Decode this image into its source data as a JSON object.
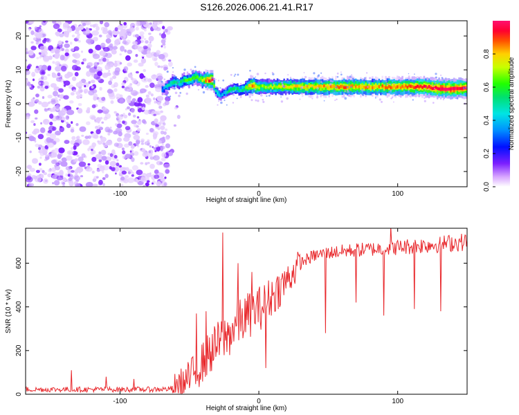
{
  "title": "S126.2026.006.21.41.R17",
  "colors": {
    "snr_line": "#e8262a",
    "speckle": "#7c1fff",
    "background": "#ffffff"
  },
  "chart_data": [
    {
      "type": "heatmap",
      "name": "spectrogram",
      "xlabel": "Height of straight line (km)",
      "ylabel": "Frequency (Hz)",
      "xlim": [
        -168,
        150
      ],
      "ylim": [
        -24.5,
        24.5
      ],
      "xticks": [
        -100,
        0,
        100
      ],
      "yticks": [
        -20,
        -10,
        0,
        10,
        20
      ],
      "noise_region": {
        "x": [
          -168,
          -65
        ],
        "y": [
          -24.5,
          24.5
        ]
      },
      "frequency_track": {
        "x": [
          -70,
          -66,
          -62,
          -58,
          -54,
          -50,
          -46,
          -42,
          -38,
          -34,
          -32,
          -30,
          -28,
          -26,
          -22,
          -18,
          -14,
          -10,
          -6,
          -2,
          2,
          10,
          20,
          40,
          60,
          80,
          100,
          120,
          130,
          140,
          150
        ],
        "y": [
          4,
          5.5,
          6.5,
          6,
          7,
          7,
          8,
          7,
          7,
          7,
          4,
          3,
          2.5,
          3,
          4,
          4.5,
          4,
          4.5,
          5.5,
          5,
          5,
          5,
          5,
          5,
          5,
          5,
          5,
          5,
          4.5,
          4.5,
          4.5
        ],
        "amplitude": [
          0.3,
          0.4,
          0.5,
          0.45,
          0.55,
          0.55,
          0.6,
          0.6,
          0.8,
          0.85,
          0.4,
          0.4,
          0.35,
          0.35,
          0.45,
          0.5,
          0.45,
          0.55,
          0.8,
          0.7,
          0.6,
          0.65,
          0.7,
          0.75,
          0.8,
          0.75,
          0.8,
          0.85,
          0.9,
          0.9,
          0.85
        ]
      },
      "colorbar": {
        "label": "Normalized spectral amplitude",
        "range": [
          0,
          1
        ],
        "ticks": [
          "0.0",
          "0.2",
          "0.4",
          "0.6",
          "0.8"
        ],
        "tick_values": [
          0,
          0.2,
          0.4,
          0.6,
          0.8
        ]
      }
    },
    {
      "type": "line",
      "name": "snr",
      "xlabel": "Height of straight line (km)",
      "ylabel": "SNR (10 * v/v)",
      "xlim": [
        -168,
        150
      ],
      "ylim": [
        0,
        760
      ],
      "xticks": [
        -100,
        0,
        100
      ],
      "yticks": [
        0,
        200,
        400,
        600
      ],
      "trend": {
        "x": [
          -168,
          -140,
          -110,
          -80,
          -64,
          -58,
          -52,
          -46,
          -40,
          -34,
          -28,
          -22,
          -16,
          -10,
          -4,
          2,
          8,
          14,
          20,
          26,
          32,
          40,
          50,
          70,
          90,
          110,
          130,
          150
        ],
        "y": [
          22,
          22,
          22,
          22,
          24,
          35,
          60,
          100,
          150,
          200,
          240,
          270,
          320,
          350,
          380,
          400,
          440,
          480,
          520,
          570,
          610,
          635,
          648,
          660,
          668,
          678,
          688,
          698
        ]
      },
      "spikes": [
        {
          "x": -135,
          "y": 110
        },
        {
          "x": -110,
          "y": 80
        },
        {
          "x": -90,
          "y": 70
        },
        {
          "x": -45,
          "y": 370
        },
        {
          "x": -38,
          "y": 380
        },
        {
          "x": -26,
          "y": 740
        },
        {
          "x": -15,
          "y": 600
        },
        {
          "x": -5,
          "y": 560
        },
        {
          "x": 5,
          "y": 120
        },
        {
          "x": 48,
          "y": 280
        },
        {
          "x": 70,
          "y": 420
        },
        {
          "x": 90,
          "y": 360
        },
        {
          "x": 95,
          "y": 770
        },
        {
          "x": 112,
          "y": 390
        },
        {
          "x": 131,
          "y": 380
        }
      ]
    }
  ]
}
